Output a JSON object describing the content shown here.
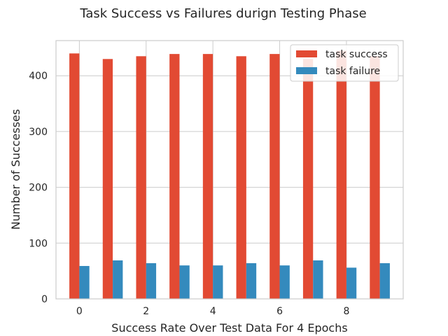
{
  "chart_data": {
    "type": "bar",
    "title": "Task Success vs Failures durign Testing Phase",
    "xlabel": "Success Rate Over Test Data For 4 Epochs",
    "ylabel": "Number of Successes",
    "x": [
      0,
      1,
      2,
      3,
      4,
      5,
      6,
      7,
      8,
      9
    ],
    "xticks": [
      0,
      2,
      4,
      6,
      8
    ],
    "yticks": [
      0,
      100,
      200,
      300,
      400
    ],
    "xlim": [
      -0.7,
      9.7
    ],
    "ylim": [
      0,
      463
    ],
    "grid": true,
    "legend_position": "top-right",
    "series": [
      {
        "name": "task success",
        "color": "#e24a33",
        "values": [
          440,
          430,
          435,
          439,
          439,
          435,
          439,
          430,
          445,
          435
        ]
      },
      {
        "name": "task failure",
        "color": "#348abd",
        "values": [
          59,
          69,
          64,
          60,
          60,
          64,
          60,
          69,
          56,
          64
        ]
      }
    ]
  }
}
